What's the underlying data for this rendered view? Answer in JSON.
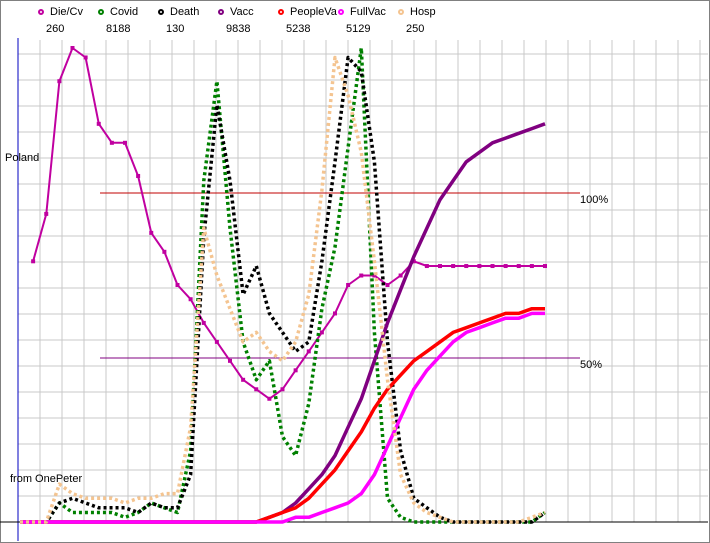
{
  "chart_data": {
    "type": "line",
    "region_label": "Poland",
    "source_label": "from OnePeter",
    "reference_lines": [
      {
        "label": "100%",
        "color": "#c00000"
      },
      {
        "label": "50%",
        "color": "#800080"
      }
    ],
    "grid": true,
    "x": [
      0,
      2,
      4,
      6,
      8,
      10,
      12,
      14,
      16,
      18,
      20,
      22,
      24,
      26,
      28,
      30,
      32,
      34,
      36,
      38,
      40,
      42,
      44,
      46,
      48,
      50,
      52,
      54,
      56,
      58,
      60,
      62,
      64,
      66,
      68,
      70,
      72,
      74,
      76,
      78,
      80
    ],
    "series": [
      {
        "name": "Die/Cv",
        "value_label": "260",
        "color": "#c000a0",
        "style": "markers",
        "values": [
          null,
          55,
          65,
          93,
          100,
          98,
          84,
          80,
          80,
          73,
          61,
          57,
          50,
          47,
          42,
          38,
          34,
          30,
          28,
          26,
          28,
          32,
          36,
          40,
          44,
          50,
          52,
          52,
          50,
          52,
          55,
          54,
          54,
          54,
          54,
          54,
          54,
          54,
          54,
          54,
          54
        ]
      },
      {
        "name": "Covid",
        "value_label": "8188",
        "color": "#008000",
        "style": "dotted",
        "values": [
          0,
          0,
          0,
          4,
          2,
          2,
          2,
          2,
          1,
          2,
          4,
          3,
          2,
          15,
          72,
          93,
          62,
          38,
          30,
          34,
          18,
          14,
          25,
          45,
          58,
          79,
          100,
          40,
          5,
          1,
          0,
          0,
          0,
          0,
          0,
          0,
          0,
          0,
          0,
          0,
          2
        ]
      },
      {
        "name": "Death",
        "value_label": "130",
        "color": "#000000",
        "style": "dotted",
        "values": [
          0,
          0,
          0,
          4,
          5,
          4,
          3,
          3,
          3,
          2,
          4,
          3,
          3,
          10,
          60,
          88,
          72,
          48,
          54,
          44,
          40,
          36,
          38,
          55,
          76,
          98,
          95,
          76,
          38,
          15,
          5,
          3,
          1,
          0,
          0,
          0,
          0,
          0,
          0,
          0,
          2
        ]
      },
      {
        "name": "Vacc",
        "value_label": "9838",
        "color": "#800080",
        "style": "solid",
        "values": [
          0,
          0,
          0,
          0,
          0,
          0,
          0,
          0,
          0,
          0,
          0,
          0,
          0,
          0,
          0,
          0,
          0,
          0,
          0,
          1,
          2,
          4,
          7,
          10,
          14,
          20,
          26,
          34,
          42,
          49,
          56,
          62,
          68,
          72,
          76,
          78,
          80,
          81,
          82,
          83,
          84
        ]
      },
      {
        "name": "PeopleVa",
        "value_label": "5238",
        "color": "#ff0000",
        "style": "solid",
        "values": [
          0,
          0,
          0,
          0,
          0,
          0,
          0,
          0,
          0,
          0,
          0,
          0,
          0,
          0,
          0,
          0,
          0,
          0,
          0,
          1,
          2,
          3,
          5,
          8,
          11,
          15,
          19,
          24,
          28,
          31,
          34,
          36,
          38,
          40,
          41,
          42,
          43,
          44,
          44,
          45,
          45
        ]
      },
      {
        "name": "FullVac",
        "value_label": "5129",
        "color": "#ff00ff",
        "style": "solid",
        "values": [
          0,
          0,
          0,
          0,
          0,
          0,
          0,
          0,
          0,
          0,
          0,
          0,
          0,
          0,
          0,
          0,
          0,
          0,
          0,
          0,
          0,
          1,
          1,
          2,
          3,
          4,
          6,
          10,
          16,
          22,
          28,
          32,
          35,
          38,
          40,
          41,
          42,
          43,
          43,
          44,
          44
        ]
      },
      {
        "name": "Hosp",
        "value_label": "250",
        "color": "#f4c490",
        "style": "dotted",
        "values": [
          0,
          0,
          0,
          8,
          6,
          5,
          5,
          5,
          4,
          5,
          5,
          6,
          6,
          20,
          62,
          52,
          45,
          38,
          40,
          36,
          34,
          38,
          48,
          70,
          98,
          90,
          78,
          55,
          30,
          10,
          4,
          2,
          1,
          0,
          0,
          0,
          0,
          0,
          0,
          1,
          2
        ]
      }
    ]
  }
}
